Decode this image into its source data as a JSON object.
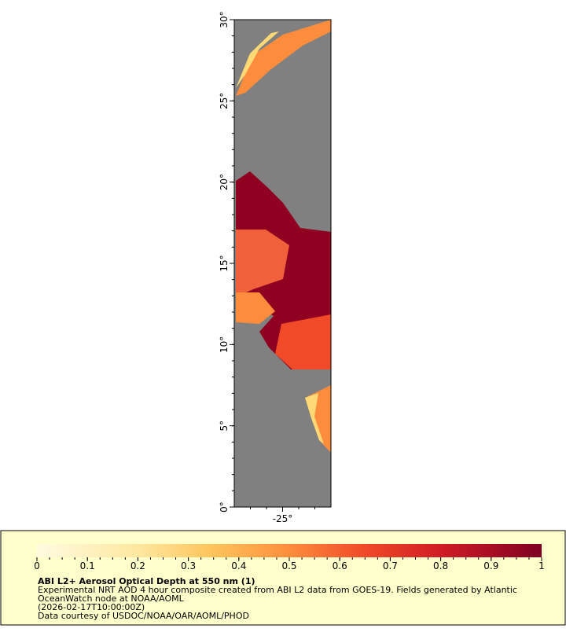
{
  "map": {
    "ylim": [
      0,
      30
    ],
    "yticks": [
      {
        "value": 0,
        "label": "0°"
      },
      {
        "value": 5,
        "label": "5°"
      },
      {
        "value": 10,
        "label": "10°"
      },
      {
        "value": 15,
        "label": "15°"
      },
      {
        "value": 20,
        "label": "20°"
      },
      {
        "value": 25,
        "label": "25°"
      },
      {
        "value": 30,
        "label": "30°"
      }
    ],
    "xlim": [
      -28,
      -22
    ],
    "xticks": [
      {
        "value": -25,
        "label": "-25°"
      }
    ]
  },
  "colorbar": {
    "range": [
      0,
      1
    ],
    "ticks": [
      0,
      0.1,
      0.2,
      0.3,
      0.4,
      0.5,
      0.6,
      0.7,
      0.8,
      0.9,
      1
    ]
  },
  "legend": {
    "title": "ABI L2+ Aerosol Optical Depth at 550 nm (1)",
    "lines": [
      "Experimental NRT AOD 4 hour composite created from ABI L2 data from GOES-19. Fields generated by Atlantic",
      "OceanWatch node at NOAA/AOML",
      "(2026-02-17T10:00:00Z)",
      "Data courtesy of USDOC/NOAA/OAR/AOML/PHOD"
    ]
  }
}
